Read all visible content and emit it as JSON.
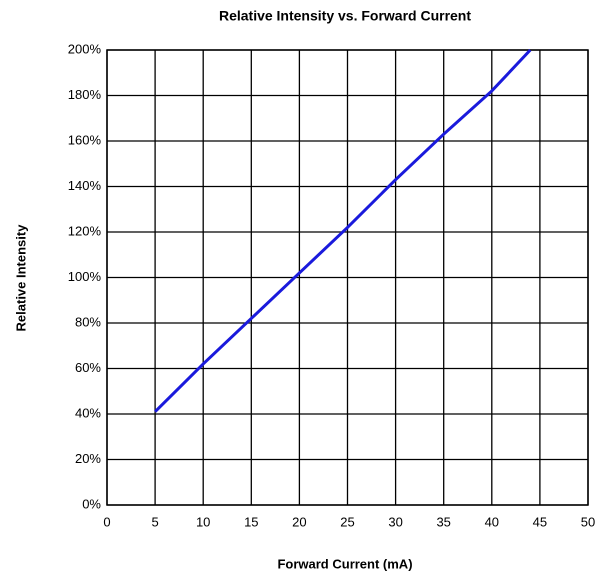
{
  "chart_data": {
    "type": "line",
    "title": "Relative Intensity vs. Forward Current",
    "x_label": "Forward Current (mA)",
    "y_label": "Relative Intensity",
    "x": [
      5,
      10,
      15,
      20,
      25,
      30,
      35,
      40,
      44
    ],
    "series": [
      {
        "name": "Relative Intensity",
        "color": "#1a1adc",
        "values": [
          41,
          62,
          82,
          102,
          122,
          143,
          163,
          182,
          200
        ]
      }
    ],
    "xlim": [
      0,
      50
    ],
    "xticks": [
      0,
      5,
      10,
      15,
      20,
      25,
      30,
      35,
      40,
      45,
      50
    ],
    "ylim": [
      0,
      200
    ],
    "yticks": [
      {
        "value": 0,
        "label": "0%"
      },
      {
        "value": 20,
        "label": "20%"
      },
      {
        "value": 40,
        "label": "40%"
      },
      {
        "value": 60,
        "label": "60%"
      },
      {
        "value": 80,
        "label": "80%"
      },
      {
        "value": 100,
        "label": "100%"
      },
      {
        "value": 120,
        "label": "120%"
      },
      {
        "value": 140,
        "label": "140%"
      },
      {
        "value": 160,
        "label": "160%"
      },
      {
        "value": 180,
        "label": "180%"
      },
      {
        "value": 200,
        "label": "200%"
      }
    ],
    "grid": true
  }
}
